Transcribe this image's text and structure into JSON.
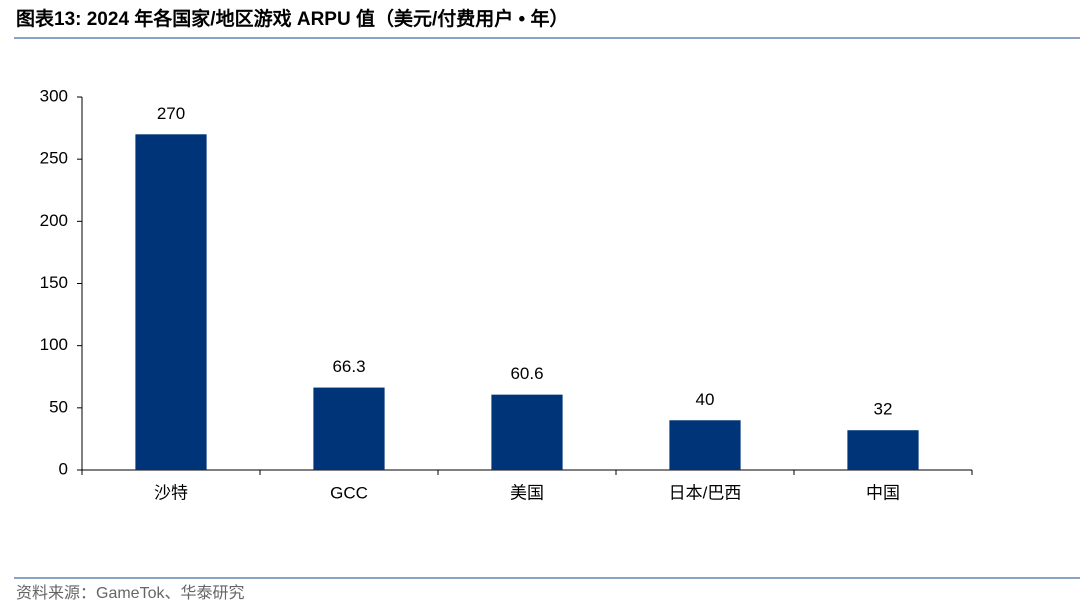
{
  "chart_data": {
    "type": "bar",
    "title": "图表13:  2024 年各国家/地区游戏 ARPU 值（美元/付费用户 • 年）",
    "source": "资料来源：GameTok、华泰研究",
    "categories": [
      "沙特",
      "GCC",
      "美国",
      "日本/巴西",
      "中国"
    ],
    "values": [
      270,
      66.3,
      60.6,
      40,
      32
    ],
    "color": "#003478",
    "ylim": [
      0,
      300
    ],
    "yticks": [
      0,
      50,
      100,
      150,
      200,
      250,
      300
    ]
  }
}
